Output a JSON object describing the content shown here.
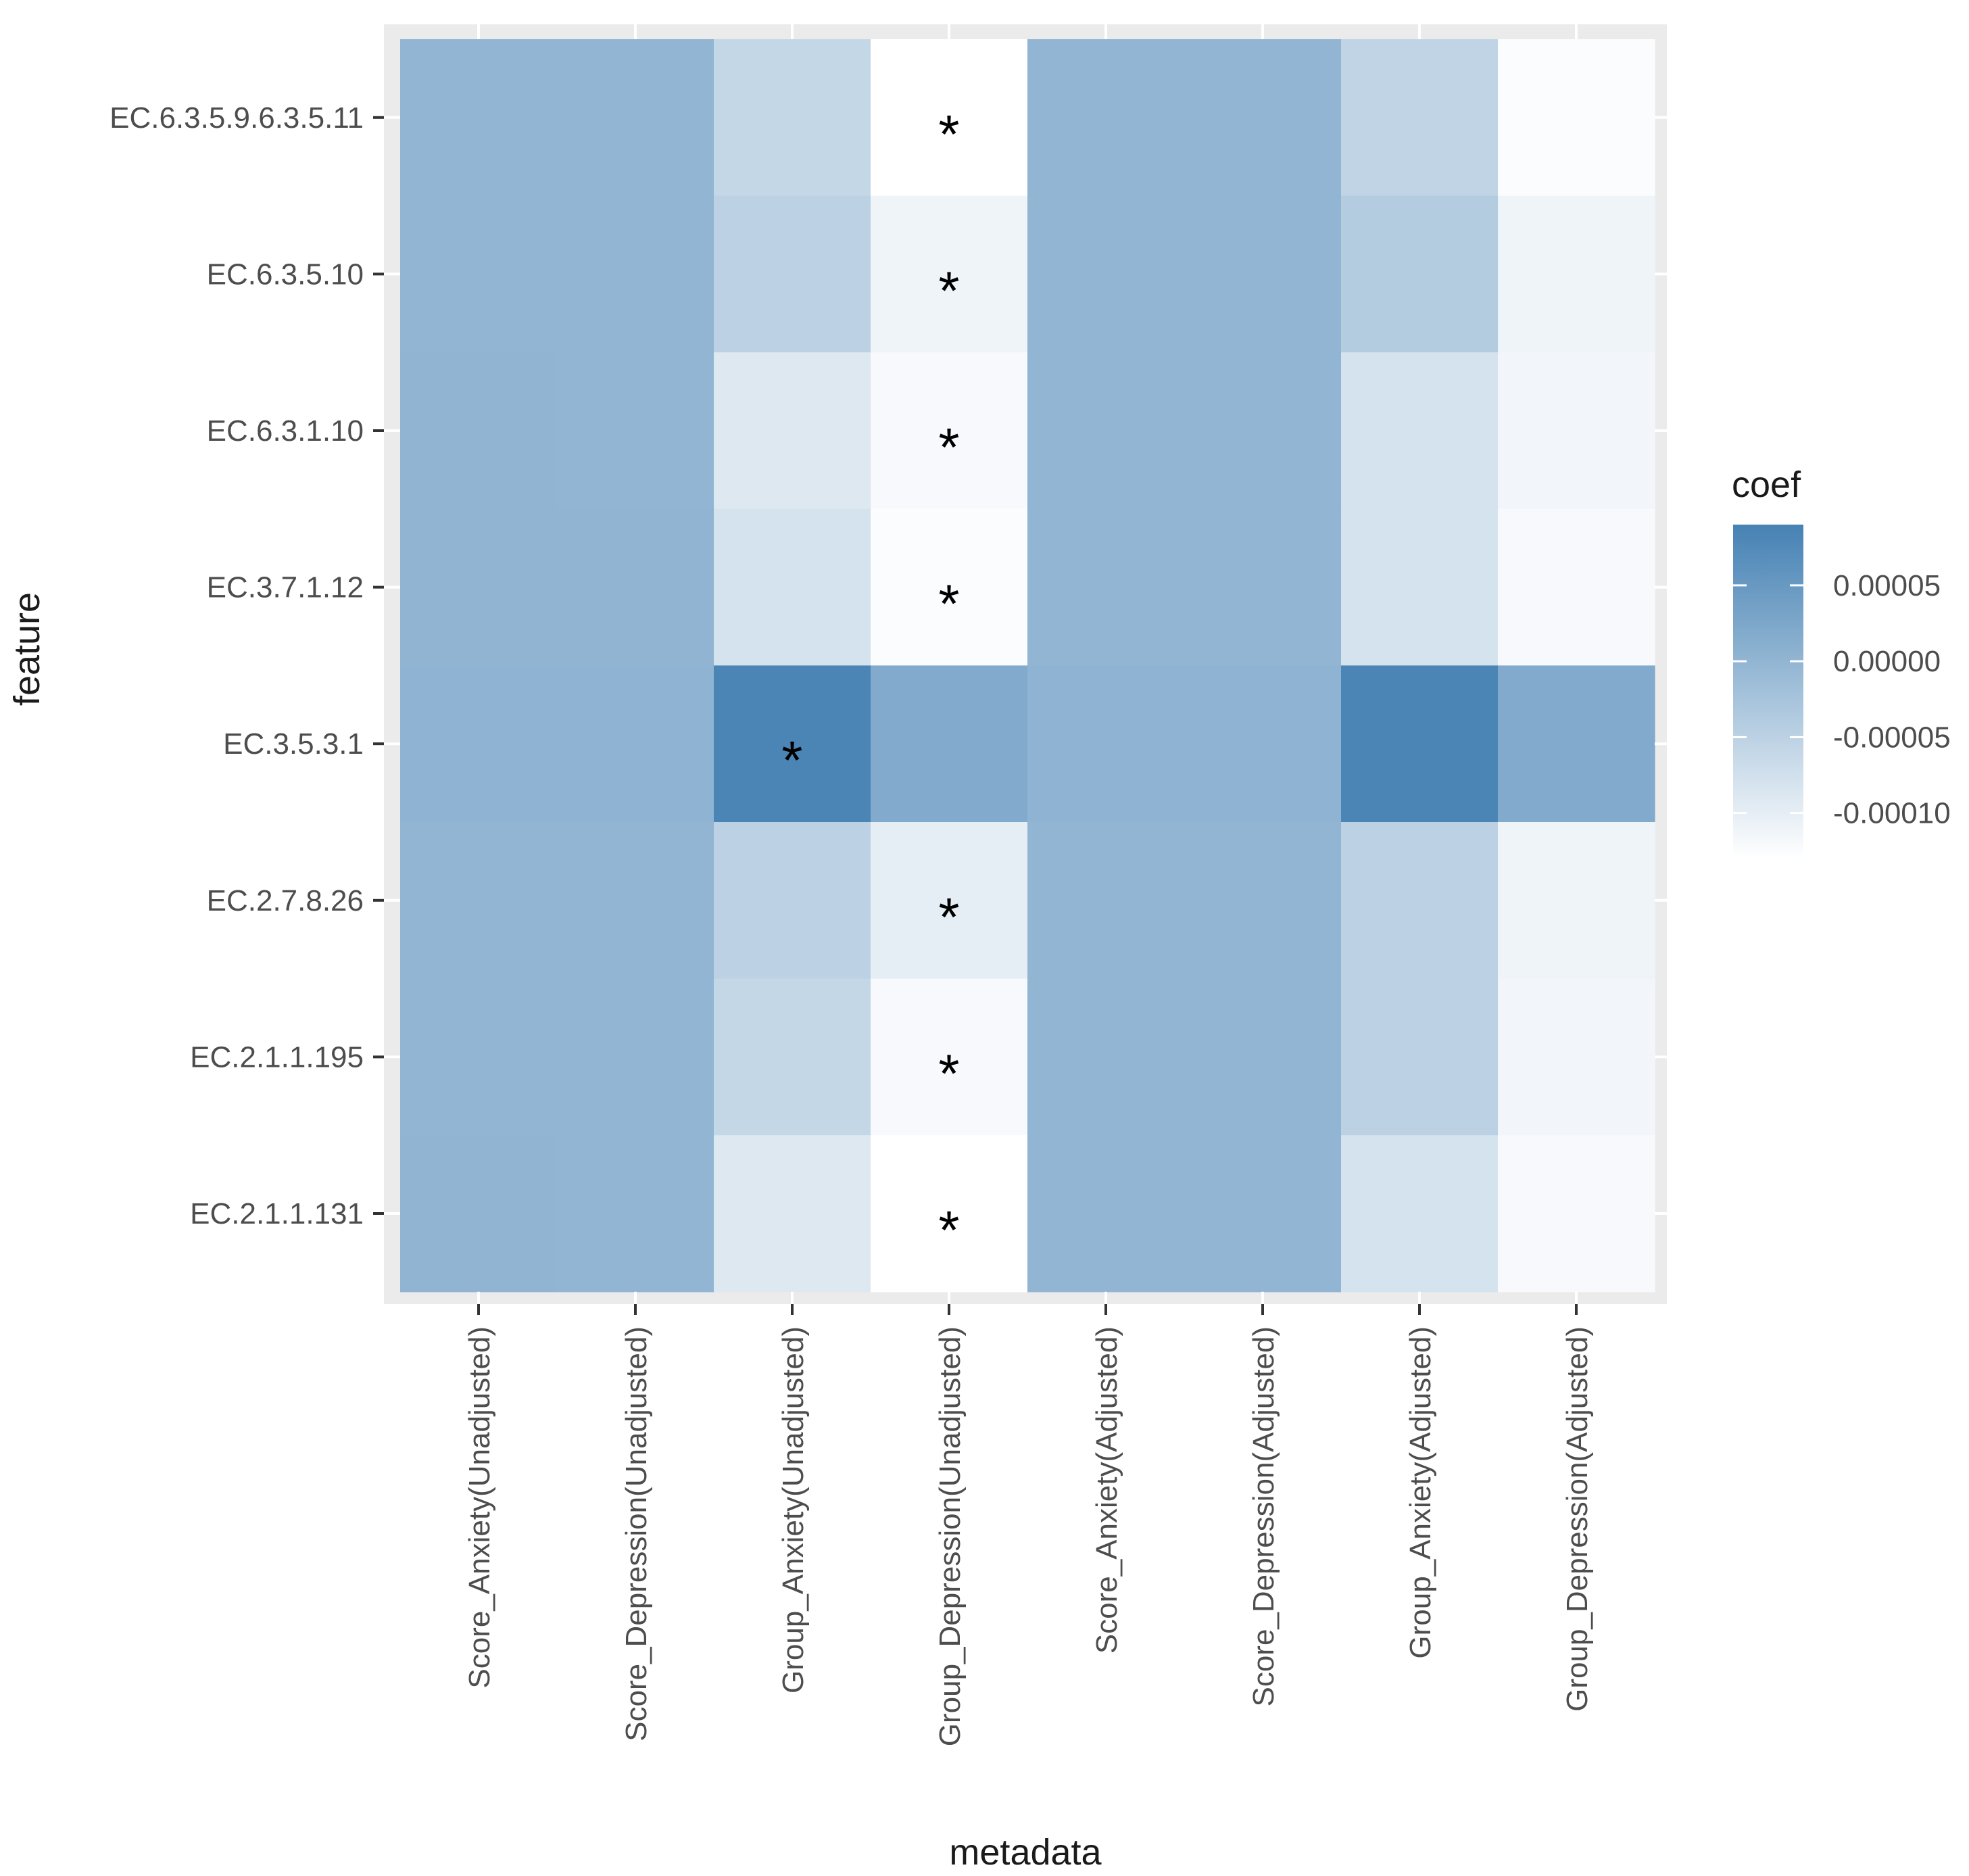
{
  "chart_data": {
    "type": "heatmap",
    "title": "",
    "xlabel": "metadata",
    "ylabel": "feature",
    "legend_title": "coef",
    "legend_position": "right",
    "x_categories": [
      "Score_Anxiety(Unadjusted)",
      "Score_Depression(Unadjusted)",
      "Group_Anxiety(Unadjusted)",
      "Group_Depression(Unadjusted)",
      "Score_Anxiety(Adjusted)",
      "Score_Depression(Adjusted)",
      "Group_Anxiety(Adjusted)",
      "Group_Depression(Adjusted)"
    ],
    "y_categories": [
      "EC.6.3.5.9.6.3.5.11",
      "EC.6.3.5.10",
      "EC.6.3.1.10",
      "EC.3.7.1.12",
      "EC.3.5.3.1",
      "EC.2.7.8.26",
      "EC.2.1.1.195",
      "EC.2.1.1.131"
    ],
    "values": [
      [
        1e-06,
        1e-06,
        -6e-05,
        -0.00013,
        1e-06,
        1e-06,
        -5.5e-05,
        -0.000125
      ],
      [
        1e-06,
        1e-06,
        -5e-05,
        -0.00011,
        1e-06,
        1e-06,
        -4e-05,
        -0.00011
      ],
      [
        2e-06,
        1e-06,
        -9e-05,
        -0.00012,
        1e-06,
        1e-06,
        -8e-05,
        -0.000115
      ],
      [
        2e-06,
        2e-06,
        -8e-05,
        -0.000125,
        1e-06,
        1e-06,
        -8e-05,
        -0.00012
      ],
      [
        3e-06,
        3e-06,
        8.5e-05,
        2e-05,
        3e-06,
        3e-06,
        8.5e-05,
        2e-05
      ],
      [
        1e-06,
        1e-06,
        -5e-05,
        -0.0001,
        1e-06,
        1e-06,
        -5e-05,
        -0.00011
      ],
      [
        1e-06,
        1e-06,
        -6e-05,
        -0.00012,
        1e-06,
        1e-06,
        -5e-05,
        -0.000115
      ],
      [
        2e-06,
        1e-06,
        -9e-05,
        -0.00013,
        1e-06,
        1e-06,
        -8e-05,
        -0.00012
      ]
    ],
    "significant": [
      [
        false,
        false,
        false,
        true,
        false,
        false,
        false,
        false
      ],
      [
        false,
        false,
        false,
        true,
        false,
        false,
        false,
        false
      ],
      [
        false,
        false,
        false,
        true,
        false,
        false,
        false,
        false
      ],
      [
        false,
        false,
        false,
        true,
        false,
        false,
        false,
        false
      ],
      [
        false,
        false,
        true,
        false,
        false,
        false,
        false,
        false
      ],
      [
        false,
        false,
        false,
        true,
        false,
        false,
        false,
        false
      ],
      [
        false,
        false,
        false,
        true,
        false,
        false,
        false,
        false
      ],
      [
        false,
        false,
        false,
        true,
        false,
        false,
        false,
        false
      ]
    ],
    "significance_marker": "*",
    "color_scale": {
      "low": "#ffffff",
      "high": "#4682b4",
      "min": -0.00013,
      "max": 9e-05
    },
    "legend_ticks": [
      {
        "value": 5e-05,
        "label": "0.00005"
      },
      {
        "value": 0.0,
        "label": "0.00000"
      },
      {
        "value": -5e-05,
        "label": "-0.00005"
      },
      {
        "value": -0.0001,
        "label": "-0.00010"
      }
    ]
  }
}
